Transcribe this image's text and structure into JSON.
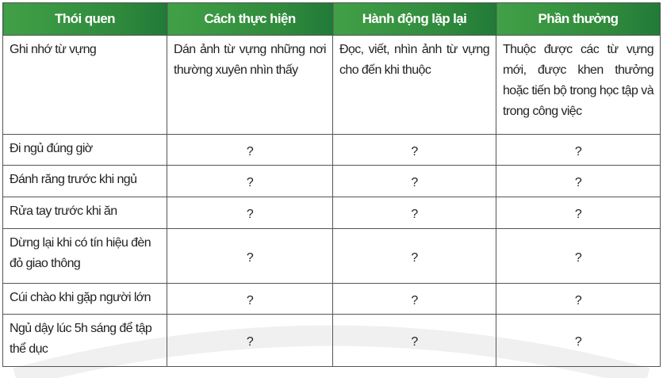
{
  "headers": [
    "Thói quen",
    "Cách thực hiện",
    "Hành động lặp lại",
    "Phần thưởng"
  ],
  "rows": [
    [
      "Ghi nhớ từ vựng",
      "Dán ảnh từ vựng những nơi thường xuyên nhìn thấy",
      "Đọc, viết, nhìn ảnh từ vựng cho đến khi thuộc",
      "Thuộc được các từ vựng mới, được khen thưởng hoặc tiến bộ trong học tập và trong công việc"
    ],
    [
      "Đi ngủ đúng giờ",
      "?",
      "?",
      "?"
    ],
    [
      "Đánh răng trước khi ngủ",
      "?",
      "?",
      "?"
    ],
    [
      "Rửa tay trước khi ăn",
      "?",
      "?",
      "?"
    ],
    [
      "Dừng lại khi có tín hiệu đèn đỏ giao thông",
      "?",
      "?",
      "?"
    ],
    [
      "Cúi chào khi gặp người lớn",
      "?",
      "?",
      "?"
    ],
    [
      "Ngủ dậy lúc 5h sáng để tập thể dục",
      "?",
      "?",
      "?"
    ]
  ],
  "colors": {
    "header_green": "#2f8a3c",
    "border": "#555555"
  }
}
